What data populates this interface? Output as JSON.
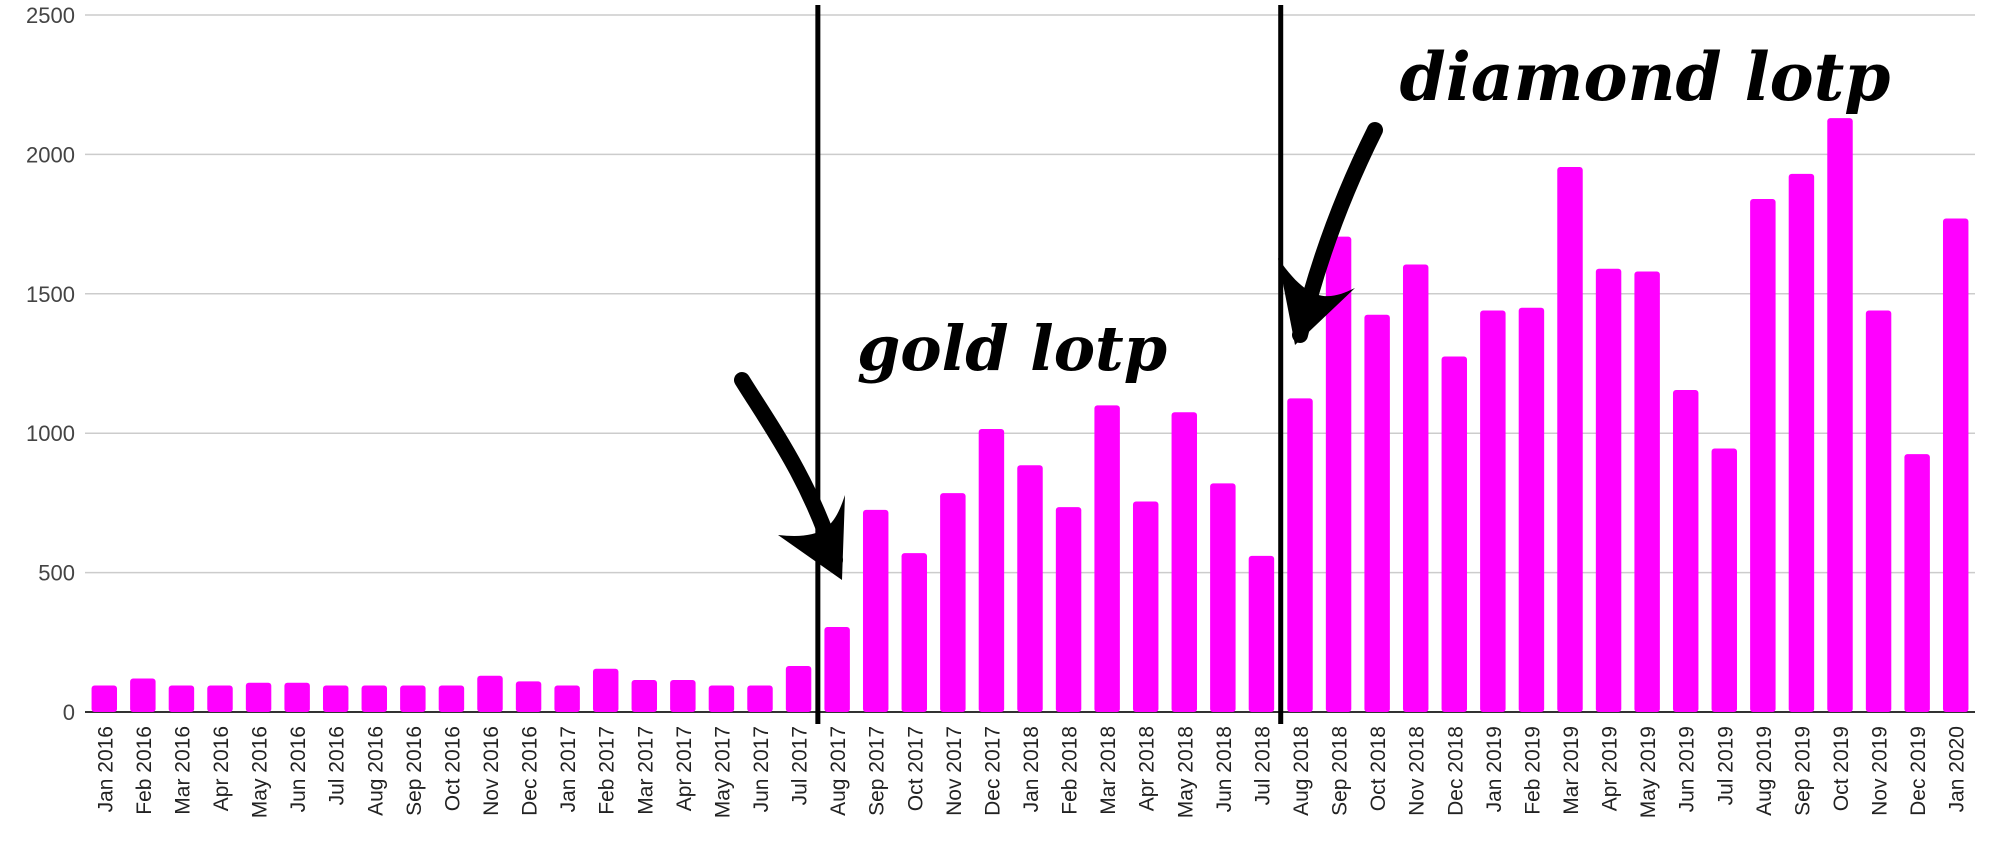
{
  "chart_data": {
    "type": "bar",
    "title": "",
    "xlabel": "",
    "ylabel": "",
    "ylim": [
      0,
      2500
    ],
    "yticks": [
      0,
      500,
      1000,
      1500,
      2000,
      2500
    ],
    "grid": true,
    "bar_color": "#ff00ff",
    "categories": [
      "Jan 2016",
      "Feb 2016",
      "Mar 2016",
      "Apr 2016",
      "May 2016",
      "Jun 2016",
      "Jul 2016",
      "Aug 2016",
      "Sep 2016",
      "Oct 2016",
      "Nov 2016",
      "Dec 2016",
      "Jan 2017",
      "Feb 2017",
      "Mar 2017",
      "Apr 2017",
      "May 2017",
      "Jun 2017",
      "Jul 2017",
      "Aug 2017",
      "Sep 2017",
      "Oct 2017",
      "Nov 2017",
      "Dec 2017",
      "Jan 2018",
      "Feb 2018",
      "Mar 2018",
      "Apr 2018",
      "May 2018",
      "Jun 2018",
      "Jul 2018",
      "Aug 2018",
      "Sep 2018",
      "Oct 2018",
      "Nov 2018",
      "Dec 2018",
      "Jan 2019",
      "Feb 2019",
      "Mar 2019",
      "Apr 2019",
      "May 2019",
      "Jun 2019",
      "Jul 2019",
      "Aug 2019",
      "Sep 2019",
      "Oct 2019",
      "Nov 2019",
      "Dec 2019",
      "Jan 2020"
    ],
    "values": [
      95,
      120,
      95,
      95,
      105,
      105,
      95,
      95,
      95,
      95,
      130,
      110,
      95,
      155,
      115,
      115,
      95,
      95,
      165,
      305,
      725,
      570,
      785,
      1015,
      885,
      735,
      1100,
      755,
      1075,
      820,
      560,
      1125,
      1705,
      1425,
      1605,
      1275,
      1440,
      1450,
      1955,
      1590,
      1580,
      1155,
      945,
      1840,
      1930,
      2130,
      1440,
      925,
      1770
    ],
    "vertical_markers": [
      {
        "between": [
          "Jul 2017",
          "Aug 2017"
        ]
      },
      {
        "between": [
          "Jul 2018",
          "Aug 2018"
        ]
      }
    ],
    "annotations": [
      {
        "text": "gold lotp"
      },
      {
        "text": "diamond lotp"
      }
    ]
  }
}
